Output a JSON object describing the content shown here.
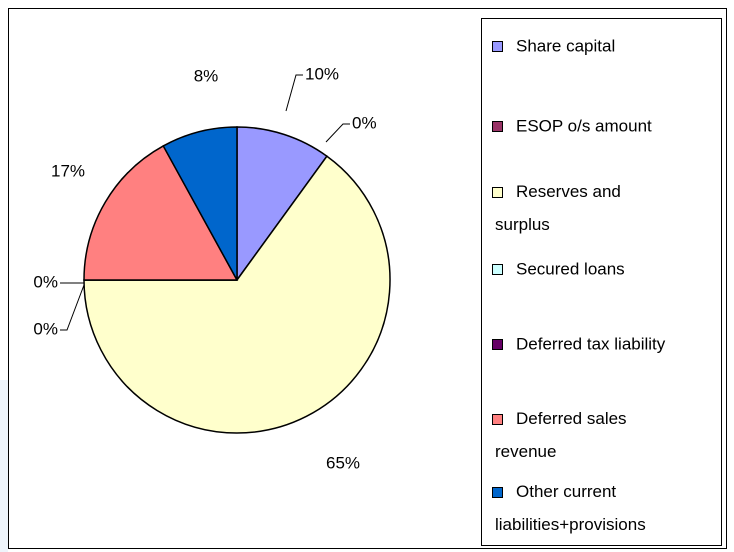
{
  "chart_data": {
    "type": "pie",
    "categories": [
      "Share capital",
      "ESOP o/s amount",
      "Reserves and surplus",
      "Secured loans",
      "Deferred tax liability",
      "Deferred sales revenue",
      "Other current liabilities+provisions"
    ],
    "values": [
      10,
      0,
      65,
      0,
      0,
      17,
      8
    ],
    "value_labels": [
      "10%",
      "0%",
      "65%",
      "0%",
      "0%",
      "17%",
      "8%"
    ],
    "colors": [
      "#9999ff",
      "#993366",
      "#ffffcc",
      "#ccffff",
      "#660066",
      "#ff8080",
      "#0066cc"
    ],
    "legend": "right"
  }
}
